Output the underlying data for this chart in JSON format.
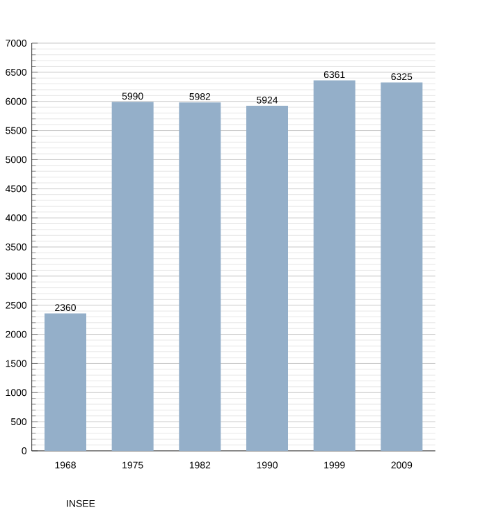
{
  "chart_data": {
    "type": "bar",
    "categories": [
      "1968",
      "1975",
      "1982",
      "1990",
      "1999",
      "2009"
    ],
    "values": [
      2360,
      5990,
      5982,
      5924,
      6361,
      6325
    ],
    "color": "#94afc9",
    "data_labels": true,
    "ylim": [
      0,
      7000
    ],
    "yticks": [
      0,
      500,
      1000,
      1500,
      2000,
      2500,
      3000,
      3500,
      4000,
      4500,
      5000,
      5500,
      6000,
      6500,
      7000
    ],
    "grid": "y",
    "annotations": [
      "INSEE"
    ]
  }
}
